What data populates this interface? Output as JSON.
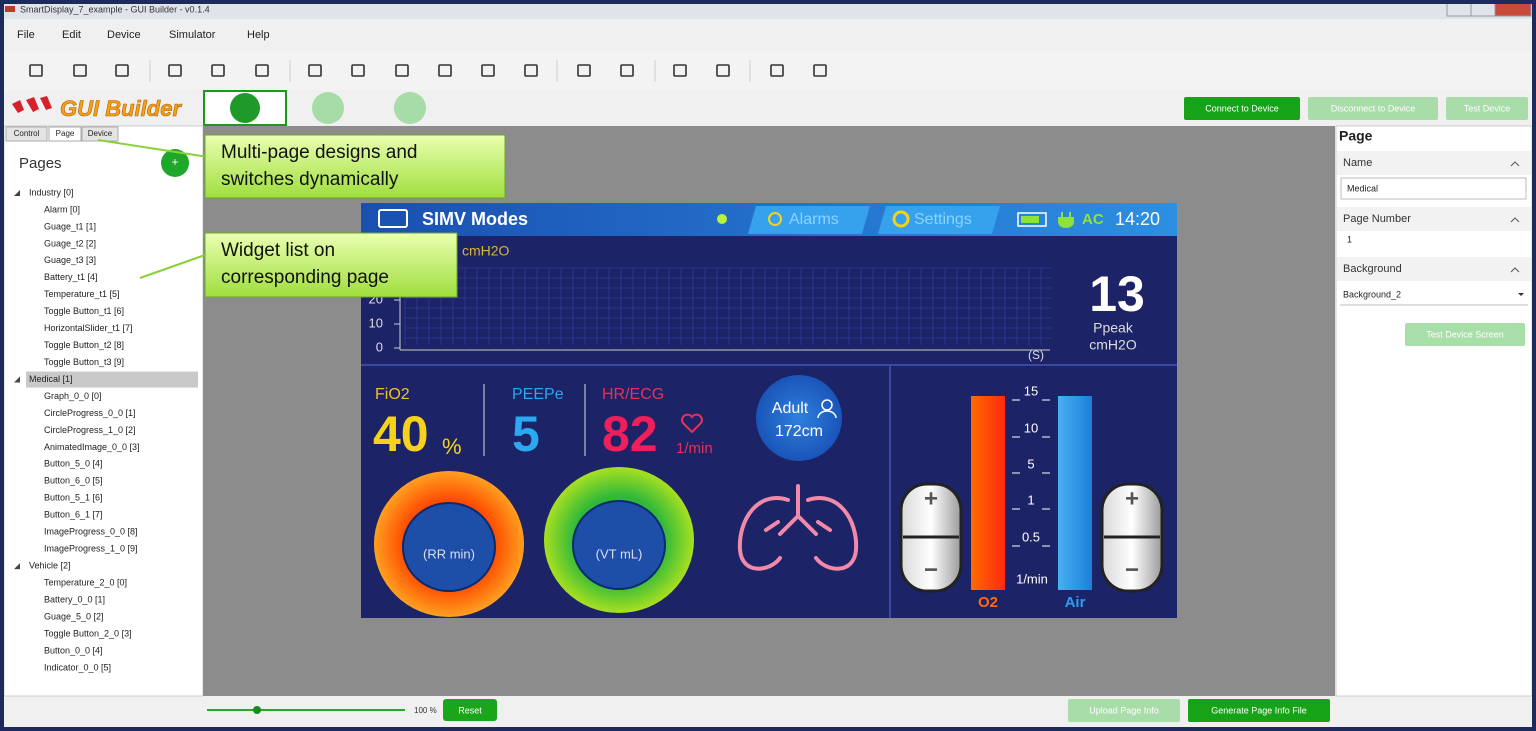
{
  "window": {
    "title": "SmartDisplay_7_example - GUI Builder - v0.1.4"
  },
  "menu": [
    "File",
    "Edit",
    "Device",
    "Simulator",
    "Help"
  ],
  "logo": "GUI Builder",
  "device_buttons": [
    "Connect to Device",
    "Disconnect to Device",
    "Test Device"
  ],
  "tabs": [
    "Control",
    "Page",
    "Device"
  ],
  "pages": {
    "title": "Pages",
    "tree": [
      {
        "label": "Industry [0]",
        "children": [
          "Alarm [0]",
          "Guage_t1 [1]",
          "Guage_t2 [2]",
          "Guage_t3 [3]",
          "Battery_t1 [4]",
          "Temperature_t1 [5]",
          "Toggle Button_t1 [6]",
          "HorizontalSlider_t1 [7]",
          "Toggle Button_t2 [8]",
          "Toggle Button_t3 [9]"
        ]
      },
      {
        "label": "Medical [1]",
        "selected": true,
        "children": [
          "Graph_0_0 [0]",
          "CircleProgress_0_0 [1]",
          "CircleProgress_1_0 [2]",
          "AnimatedImage_0_0 [3]",
          "Button_5_0 [4]",
          "Button_6_0 [5]",
          "Button_5_1 [6]",
          "Button_6_1 [7]",
          "ImageProgress_0_0 [8]",
          "ImageProgress_1_0 [9]"
        ]
      },
      {
        "label": "Vehicle [2]",
        "children": [
          "Temperature_2_0 [0]",
          "Battery_0_0 [1]",
          "Guage_5_0 [2]",
          "Toggle Button_2_0 [3]",
          "Button_0_0 [4]",
          "Indicator_0_0 [5]"
        ]
      }
    ]
  },
  "callouts": [
    {
      "lines": [
        "Multi-page designs and",
        "switches dynamically"
      ]
    },
    {
      "lines": [
        "Widget list on",
        "corresponding page"
      ]
    }
  ],
  "screen": {
    "title": "SIMV Modes",
    "alarms": "Alarms",
    "settings": "Settings",
    "power": "AC",
    "time": "14:20",
    "graph": {
      "unit": "cmH2O",
      "yticks": [
        "20",
        "10",
        "0"
      ],
      "xlabel": "(S)"
    },
    "ppeak": {
      "value": "13",
      "label": "Ppeak",
      "unit": "cmH2O"
    },
    "fio2": {
      "label": "FiO2",
      "value": "40",
      "unit": "%"
    },
    "peepe": {
      "label": "PEEPe",
      "value": "5"
    },
    "hr": {
      "label": "HR/ECG",
      "value": "82",
      "unit": "1/min"
    },
    "patient": [
      "Adult",
      "172cm"
    ],
    "rr": "(RR min)",
    "vt": "(VT mL)",
    "flow_scale": [
      "15",
      "10",
      "5",
      "1",
      "0.5"
    ],
    "flow_unit": "1/min",
    "gauges": [
      "O2",
      "Air"
    ]
  },
  "properties": {
    "title": "Page",
    "name_label": "Name",
    "name": "Medical",
    "number_label": "Page Number",
    "number": "1",
    "background_label": "Background",
    "background": "Background_2",
    "test_button": "Test Device Screen"
  },
  "footer": {
    "zoom": "100 %",
    "reset": "Reset",
    "buttons": [
      "Upload Page Info",
      "Generate Page Info File"
    ]
  }
}
